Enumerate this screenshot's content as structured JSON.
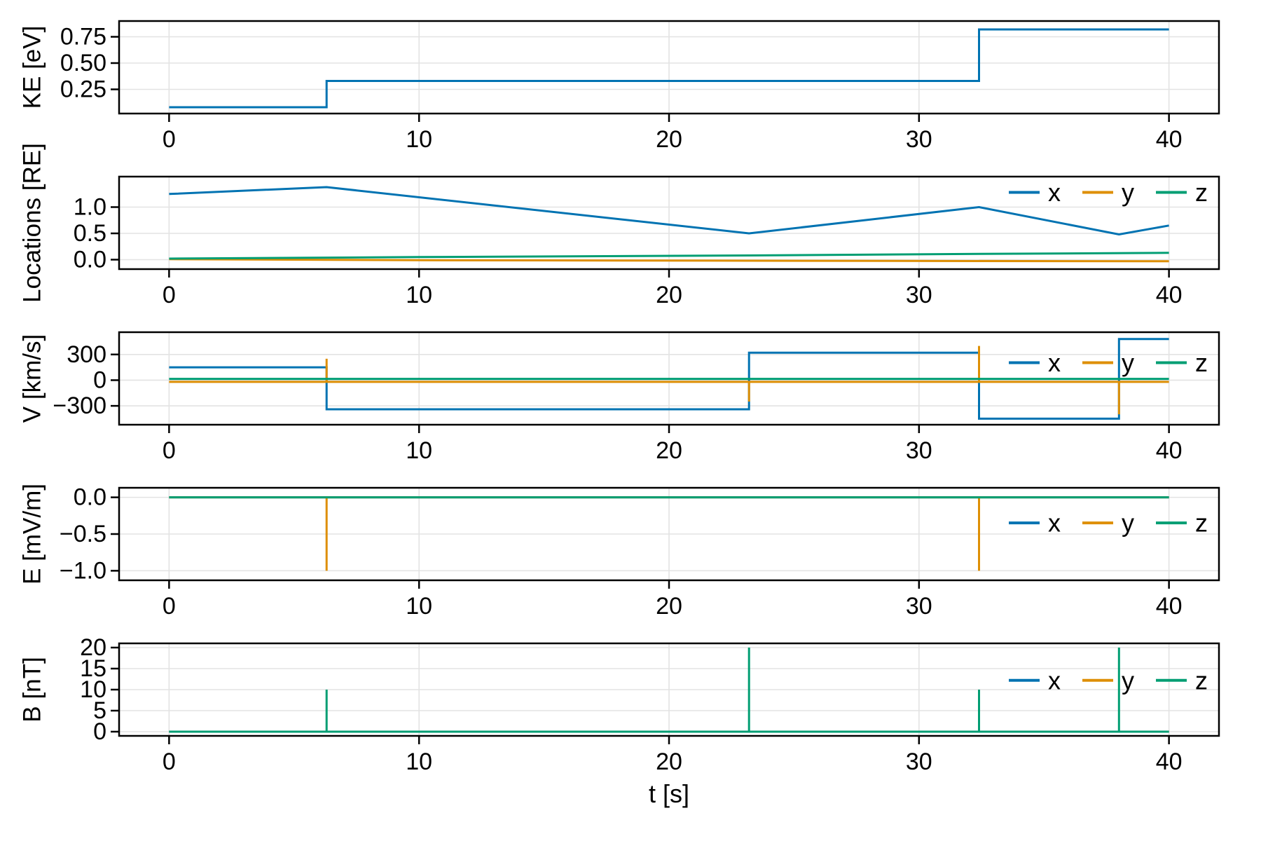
{
  "figure": {
    "xlabel": "t [s]",
    "x_ticks": [
      0,
      10,
      20,
      30,
      40
    ],
    "x_tick_labels": [
      "0",
      "10",
      "20",
      "30",
      "40"
    ],
    "xlim": [
      -2,
      42
    ],
    "colors": {
      "x": "#0173B2",
      "y": "#DE8F05",
      "z": "#029E73",
      "grid": "#e3e3e3",
      "spine": "#000000",
      "text": "#000000"
    },
    "legend_entries": [
      "x",
      "y",
      "z"
    ]
  },
  "chart_data": [
    {
      "type": "line",
      "id": "ke",
      "ylabel": "KE [eV]",
      "ylim": [
        0.02,
        0.9
      ],
      "ytick_values": [
        0.25,
        0.5,
        0.75
      ],
      "ytick_labels": [
        "0.25",
        "0.50",
        "0.75"
      ],
      "legend": false,
      "series": [
        {
          "name": "x",
          "points": [
            [
              0,
              0.08
            ],
            [
              6.3,
              0.08
            ],
            [
              6.3,
              0.33
            ],
            [
              32.4,
              0.33
            ],
            [
              32.4,
              0.82
            ],
            [
              40,
              0.82
            ]
          ]
        }
      ]
    },
    {
      "type": "line",
      "id": "locations",
      "ylabel": "Locations [RE]",
      "ylim": [
        -0.18,
        1.58
      ],
      "ytick_values": [
        0.0,
        0.5,
        1.0
      ],
      "ytick_labels": [
        "0.0",
        "0.5",
        "1.0"
      ],
      "legend": true,
      "series": [
        {
          "name": "x",
          "points": [
            [
              0,
              1.25
            ],
            [
              6.3,
              1.38
            ],
            [
              23.2,
              0.5
            ],
            [
              32.4,
              1.0
            ],
            [
              38,
              0.48
            ],
            [
              40,
              0.65
            ]
          ]
        },
        {
          "name": "y",
          "points": [
            [
              0,
              0.01
            ],
            [
              10,
              -0.01
            ],
            [
              23.2,
              -0.02
            ],
            [
              40,
              -0.03
            ]
          ]
        },
        {
          "name": "z",
          "points": [
            [
              0,
              0.02
            ],
            [
              10,
              0.05
            ],
            [
              23.2,
              0.08
            ],
            [
              32.4,
              0.11
            ],
            [
              40,
              0.13
            ]
          ]
        }
      ]
    },
    {
      "type": "line",
      "id": "v",
      "ylabel": "V [km/s]",
      "ylim": [
        -520,
        560
      ],
      "ytick_values": [
        -300,
        0,
        300
      ],
      "ytick_labels": [
        "−300",
        "0",
        "300"
      ],
      "legend": true,
      "series": [
        {
          "name": "x",
          "points": [
            [
              0,
              150
            ],
            [
              6.3,
              150
            ],
            [
              6.3,
              -340
            ],
            [
              23.2,
              -340
            ],
            [
              23.2,
              320
            ],
            [
              32.4,
              320
            ],
            [
              32.4,
              -450
            ],
            [
              38,
              -450
            ],
            [
              38,
              480
            ],
            [
              40,
              480
            ]
          ]
        },
        {
          "name": "y",
          "points": [
            [
              0,
              -20
            ],
            [
              6.3,
              -20
            ],
            [
              6.3,
              250
            ],
            [
              6.3,
              -20
            ],
            [
              23.2,
              -20
            ],
            [
              23.2,
              -250
            ],
            [
              23.2,
              -20
            ],
            [
              32.4,
              -20
            ],
            [
              32.4,
              400
            ],
            [
              32.4,
              -20
            ],
            [
              38,
              -20
            ],
            [
              38,
              -400
            ],
            [
              38,
              -20
            ],
            [
              40,
              -20
            ]
          ]
        },
        {
          "name": "z",
          "points": [
            [
              0,
              15
            ],
            [
              40,
              15
            ]
          ]
        }
      ]
    },
    {
      "type": "line",
      "id": "e",
      "ylabel": "E [mV/m]",
      "ylim": [
        -1.13,
        0.13
      ],
      "ytick_values": [
        0.0,
        -0.5,
        -1.0
      ],
      "ytick_labels": [
        "0.0",
        "−0.5",
        "−1.0"
      ],
      "legend": true,
      "series": [
        {
          "name": "x",
          "points": [
            [
              0,
              0
            ],
            [
              40,
              0
            ]
          ]
        },
        {
          "name": "y",
          "points": [
            [
              0,
              0
            ],
            [
              6.3,
              0
            ],
            [
              6.3,
              -1.0
            ],
            [
              6.3,
              0
            ],
            [
              32.4,
              0
            ],
            [
              32.4,
              -1.0
            ],
            [
              32.4,
              0
            ],
            [
              40,
              0
            ]
          ]
        },
        {
          "name": "z",
          "points": [
            [
              0,
              0
            ],
            [
              40,
              0
            ]
          ]
        }
      ]
    },
    {
      "type": "line",
      "id": "b",
      "ylabel": "B [nT]",
      "ylim": [
        -1.0,
        21.0
      ],
      "ytick_values": [
        0,
        5,
        10,
        15,
        20
      ],
      "ytick_labels": [
        "0",
        "5",
        "10",
        "15",
        "20"
      ],
      "legend": true,
      "series": [
        {
          "name": "x",
          "points": [
            [
              0,
              0
            ],
            [
              40,
              0
            ]
          ]
        },
        {
          "name": "y",
          "points": [
            [
              0,
              0
            ],
            [
              40,
              0
            ]
          ]
        },
        {
          "name": "z",
          "points": [
            [
              0,
              0
            ],
            [
              6.3,
              0
            ],
            [
              6.3,
              10
            ],
            [
              6.3,
              0
            ],
            [
              23.2,
              0
            ],
            [
              23.2,
              20
            ],
            [
              23.2,
              0
            ],
            [
              32.4,
              0
            ],
            [
              32.4,
              10
            ],
            [
              32.4,
              0
            ],
            [
              38,
              0
            ],
            [
              38,
              20
            ],
            [
              38,
              0
            ],
            [
              40,
              0
            ]
          ]
        }
      ]
    }
  ]
}
